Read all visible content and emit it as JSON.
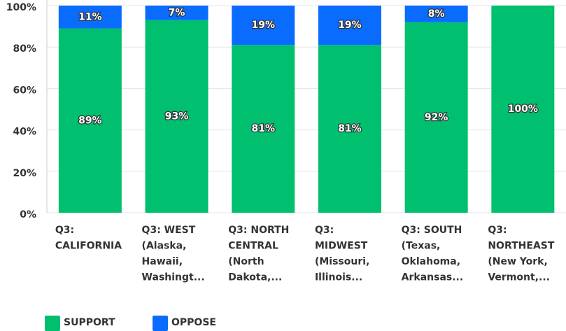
{
  "chart_data": {
    "type": "stacked_bar",
    "categories": [
      [
        "Q3:",
        "CALIFORNIA"
      ],
      [
        "Q3: WEST",
        "(Alaska,",
        "Hawaii,",
        "Washingt..."
      ],
      [
        "Q3: NORTH",
        "CENTRAL",
        "(North",
        "Dakota,..."
      ],
      [
        "Q3:",
        "MIDWEST",
        "(Missouri,",
        "Illinois..."
      ],
      [
        "Q3: SOUTH",
        "(Texas,",
        "Oklahoma,",
        "Arkansas..."
      ],
      [
        "Q3:",
        "NORTHEAST",
        "(New York,",
        "Vermont,..."
      ]
    ],
    "series": [
      {
        "name": "SUPPORT",
        "color": "#00bf6f",
        "values": [
          89,
          93,
          81,
          81,
          92,
          100
        ],
        "value_labels": [
          "89%",
          "93%",
          "81%",
          "81%",
          "92%",
          "100%"
        ]
      },
      {
        "name": "OPPOSE",
        "color": "#0a6cff",
        "values": [
          11,
          7,
          19,
          19,
          8,
          0
        ],
        "value_labels": [
          "11%",
          "7%",
          "19%",
          "19%",
          "8%",
          null
        ]
      }
    ],
    "ylim": [
      0,
      100
    ],
    "yticks": [
      {
        "value": 0,
        "label": "0%"
      },
      {
        "value": 20,
        "label": "20%"
      },
      {
        "value": 40,
        "label": "40%"
      },
      {
        "value": 60,
        "label": "60%"
      },
      {
        "value": 80,
        "label": "80%"
      },
      {
        "value": 100,
        "label": "100%"
      }
    ],
    "grid": true
  }
}
